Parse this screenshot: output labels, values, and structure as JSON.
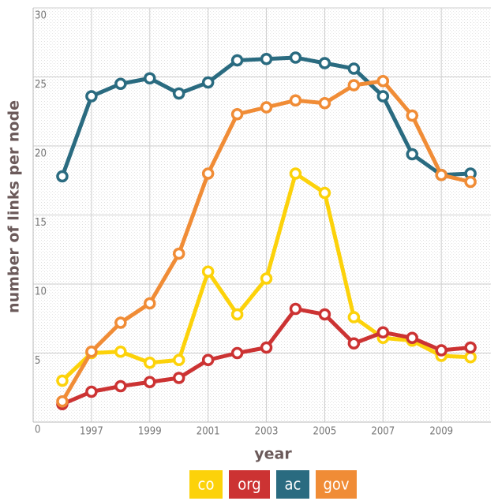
{
  "chart_data": {
    "type": "line",
    "x_label": "year",
    "y_label": "number of links per node",
    "x": [
      1996,
      1997,
      1998,
      1999,
      2000,
      2001,
      2002,
      2003,
      2004,
      2005,
      2006,
      2007,
      2008,
      2009,
      2010
    ],
    "series": [
      {
        "name": "co",
        "color": "#fcd20a",
        "values": [
          3.0,
          5.0,
          5.1,
          4.3,
          4.5,
          10.9,
          7.8,
          10.4,
          18.0,
          16.6,
          7.6,
          6.1,
          5.9,
          4.8,
          4.7
        ]
      },
      {
        "name": "org",
        "color": "#cc3333",
        "values": [
          1.3,
          2.2,
          2.6,
          2.9,
          3.2,
          4.5,
          5.0,
          5.4,
          8.2,
          7.8,
          5.7,
          6.5,
          6.1,
          5.2,
          5.4
        ]
      },
      {
        "name": "ac",
        "color": "#2a6b80",
        "values": [
          17.8,
          23.6,
          24.5,
          24.9,
          23.8,
          24.6,
          26.2,
          26.3,
          26.4,
          26.0,
          25.6,
          23.6,
          19.4,
          17.9,
          18.0
        ]
      },
      {
        "name": "gov",
        "color": "#f08c36",
        "values": [
          1.5,
          5.1,
          7.2,
          8.6,
          12.2,
          18.0,
          22.3,
          22.8,
          23.3,
          23.1,
          24.4,
          24.7,
          22.2,
          17.9,
          17.4
        ]
      }
    ],
    "xlim": [
      1995,
      2010.7
    ],
    "xticks": [
      1997,
      1999,
      2001,
      2003,
      2005,
      2007,
      2009
    ],
    "ylim": [
      0,
      30
    ],
    "yticks": [
      0,
      5,
      10,
      15,
      20,
      25,
      30
    ],
    "grid": true,
    "legend": "bottom"
  }
}
